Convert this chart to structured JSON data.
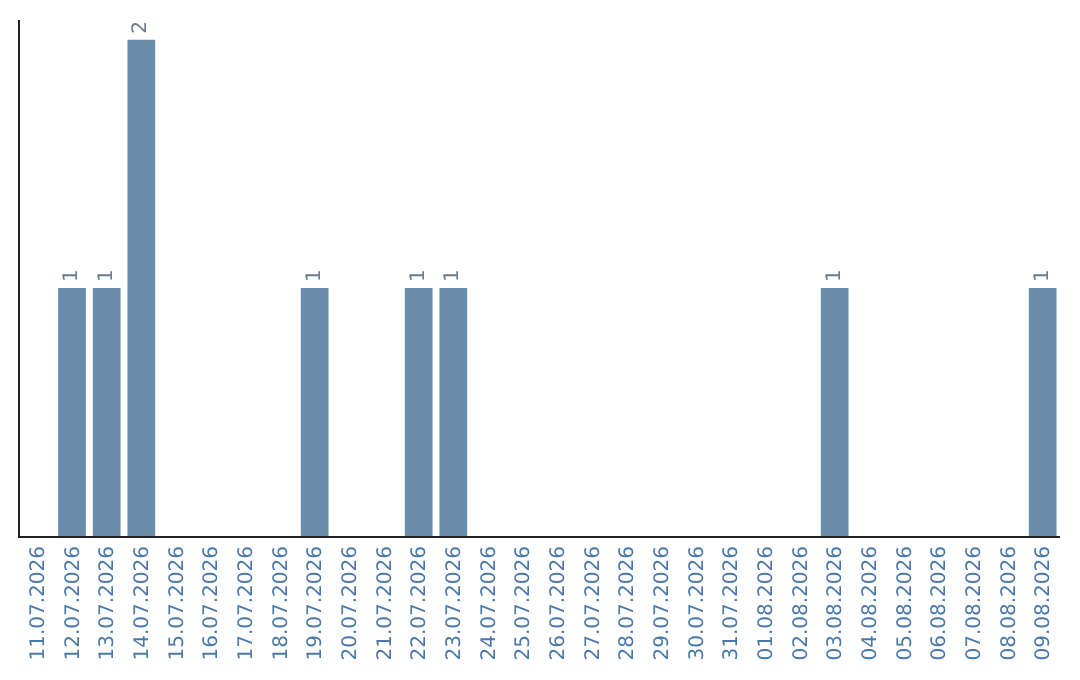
{
  "chart_data": {
    "type": "bar",
    "categories": [
      "11.07.2026",
      "12.07.2026",
      "13.07.2026",
      "14.07.2026",
      "15.07.2026",
      "16.07.2026",
      "17.07.2026",
      "18.07.2026",
      "19.07.2026",
      "20.07.2026",
      "21.07.2026",
      "22.07.2026",
      "23.07.2026",
      "24.07.2026",
      "25.07.2026",
      "26.07.2026",
      "27.07.2026",
      "28.07.2026",
      "29.07.2026",
      "30.07.2026",
      "31.07.2026",
      "01.08.2026",
      "02.08.2026",
      "03.08.2026",
      "04.08.2026",
      "05.08.2026",
      "06.08.2026",
      "07.08.2026",
      "08.08.2026",
      "09.08.2026"
    ],
    "values": [
      0,
      1,
      1,
      2,
      0,
      0,
      0,
      0,
      1,
      0,
      0,
      1,
      1,
      0,
      0,
      0,
      0,
      0,
      0,
      0,
      0,
      0,
      0,
      1,
      0,
      0,
      0,
      0,
      0,
      1
    ],
    "value_labels": [
      null,
      "1",
      "1",
      "2",
      null,
      null,
      null,
      null,
      "1",
      null,
      null,
      "1",
      "1",
      null,
      null,
      null,
      null,
      null,
      null,
      null,
      null,
      null,
      null,
      "1",
      null,
      null,
      null,
      null,
      null,
      "1"
    ],
    "color": "#6a8cab",
    "ylim": [
      0,
      2.08
    ],
    "tick_labels": "x"
  }
}
